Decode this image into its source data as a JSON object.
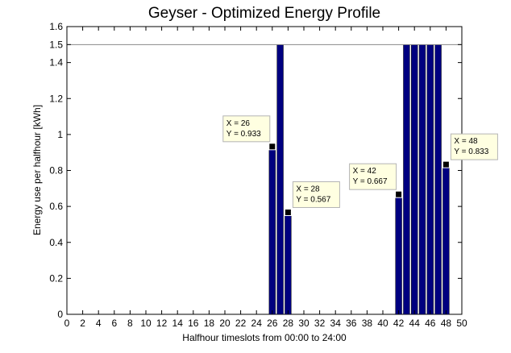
{
  "chart_data": {
    "type": "bar",
    "title": "Geyser - Optimized Energy Profile",
    "xlabel": "Halfhour timeslots from 00:00 to 24:00",
    "ylabel": "Energy use per halfhour [kWh]",
    "xlim": [
      0,
      50
    ],
    "ylim": [
      0,
      1.6
    ],
    "xticks": [
      0,
      2,
      4,
      6,
      8,
      10,
      12,
      14,
      16,
      18,
      20,
      22,
      24,
      26,
      28,
      30,
      32,
      34,
      36,
      38,
      40,
      42,
      44,
      46,
      48,
      50
    ],
    "yticks": [
      0,
      0.2,
      0.4,
      0.6,
      0.8,
      1,
      1.2,
      1.4,
      1.5,
      1.6
    ],
    "ytick_labels": [
      "0",
      "0.2",
      "0.4",
      "0.6",
      "0.8",
      "1",
      "1.2",
      "1.4",
      "1.5",
      "1.6"
    ],
    "limit_line": 1.5,
    "bar_color": "#000080",
    "grid": false,
    "bars": [
      {
        "x": 26,
        "y": 0.933
      },
      {
        "x": 27,
        "y": 1.5
      },
      {
        "x": 28,
        "y": 0.567
      },
      {
        "x": 42,
        "y": 0.667
      },
      {
        "x": 43,
        "y": 1.5
      },
      {
        "x": 44,
        "y": 1.5
      },
      {
        "x": 45,
        "y": 1.5
      },
      {
        "x": 46,
        "y": 1.5
      },
      {
        "x": 47,
        "y": 1.5
      },
      {
        "x": 48,
        "y": 0.833
      }
    ],
    "datatips": [
      {
        "x": 26,
        "y": 0.933,
        "line1": "X = 26",
        "line2": "Y = 0.933",
        "side": "left"
      },
      {
        "x": 28,
        "y": 0.567,
        "line1": "X = 28",
        "line2": "Y = 0.567",
        "side": "right"
      },
      {
        "x": 42,
        "y": 0.667,
        "line1": "X = 42",
        "line2": "Y = 0.667",
        "side": "left"
      },
      {
        "x": 48,
        "y": 0.833,
        "line1": "X = 48",
        "line2": "Y = 0.833",
        "side": "right"
      }
    ]
  }
}
